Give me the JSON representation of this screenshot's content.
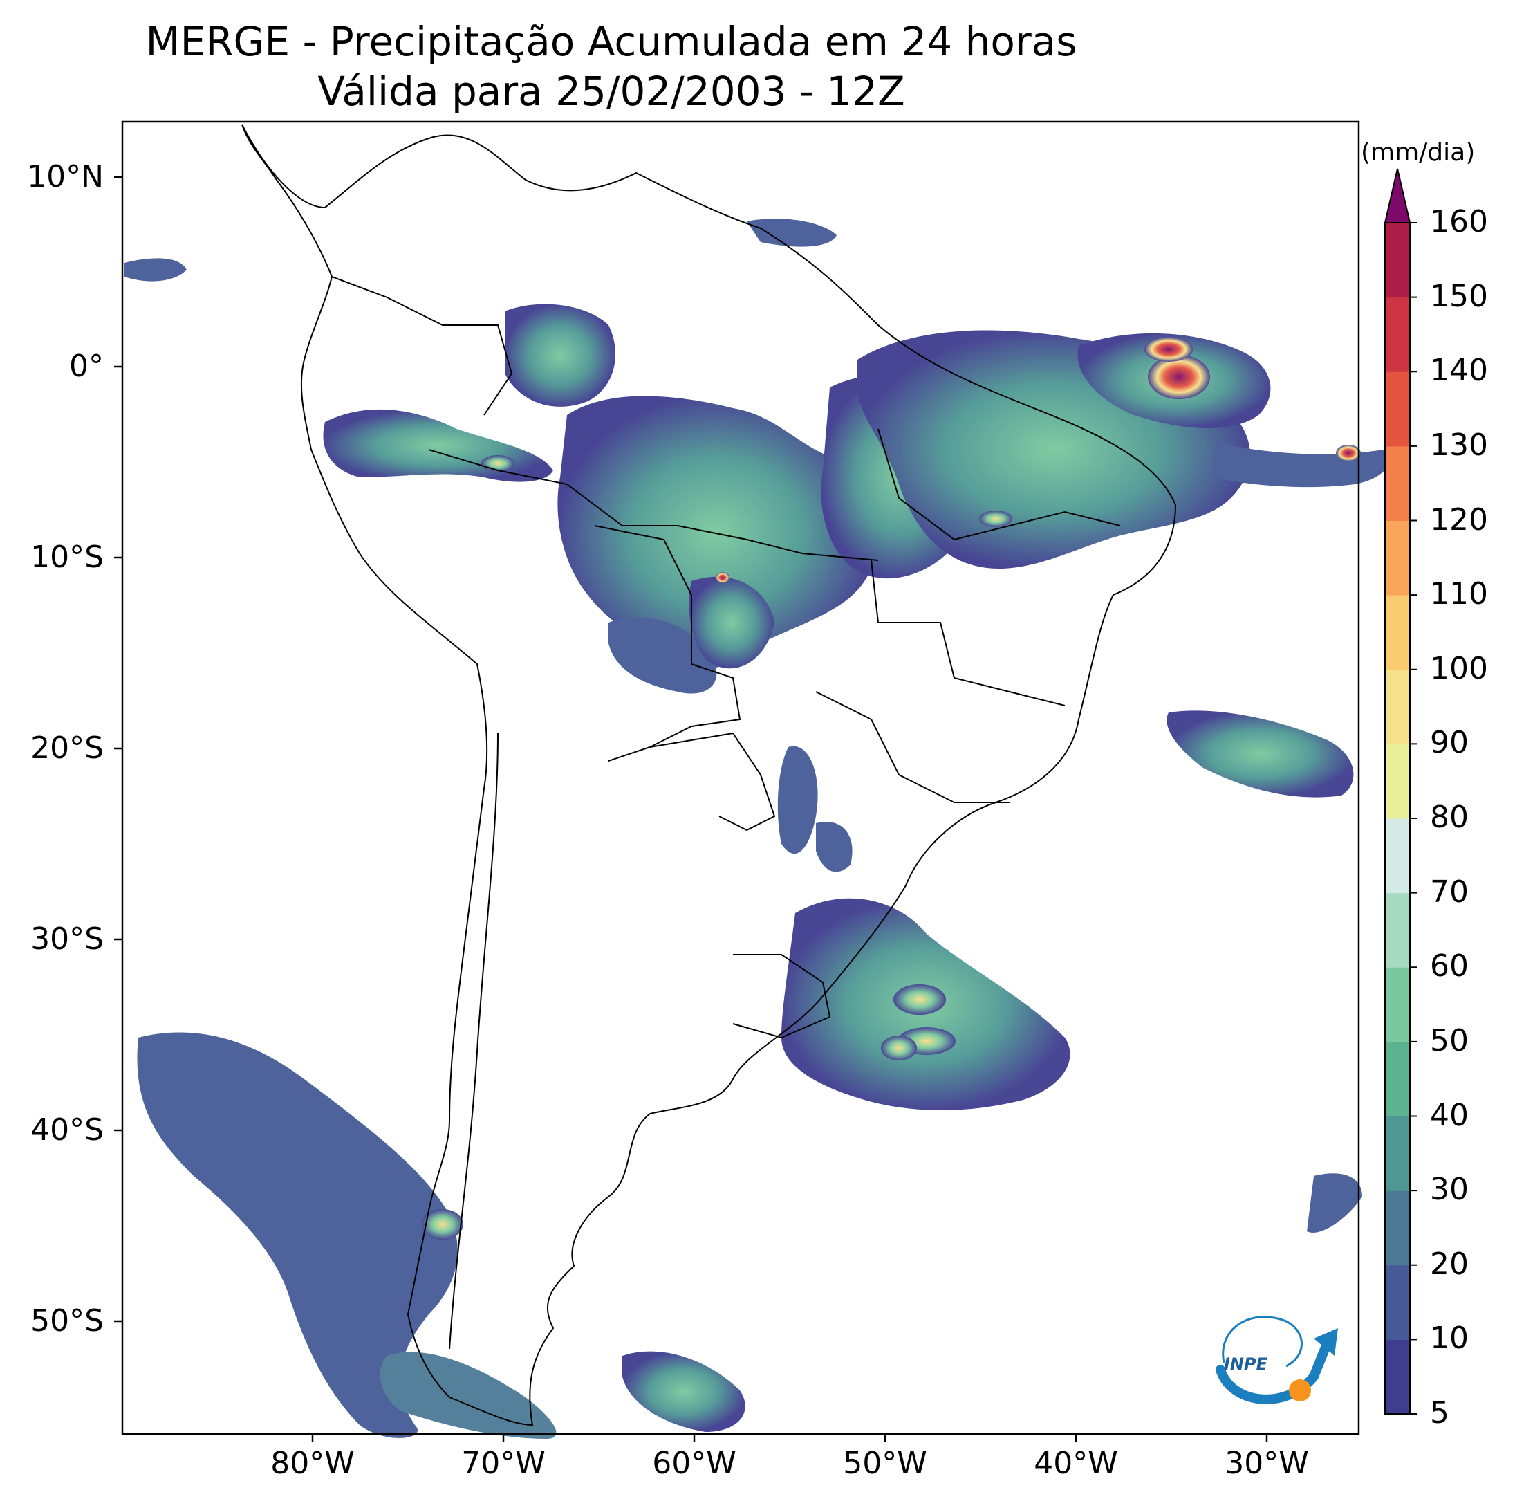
{
  "title_line1": "MERGE - Precipitação Acumulada em 24 horas",
  "title_line2": "Válida para 25/02/2003 - 12Z",
  "lat_labels": [
    "10°N",
    "0°",
    "10°S",
    "20°S",
    "30°S",
    "40°S",
    "50°S"
  ],
  "lon_labels": [
    "80°W",
    "70°W",
    "60°W",
    "50°W",
    "40°W",
    "30°W"
  ],
  "colorbar": {
    "unit": "(mm/dia)",
    "ticks": [
      "5",
      "10",
      "20",
      "30",
      "40",
      "50",
      "60",
      "70",
      "80",
      "90",
      "100",
      "110",
      "120",
      "130",
      "140",
      "150",
      "160"
    ],
    "extend": "max",
    "palette": [
      "#3f3d8f",
      "#455a96",
      "#4c7a96",
      "#4e9894",
      "#5cb38f",
      "#7ac99e",
      "#a6dbc1",
      "#d5ece6",
      "#e8f09a",
      "#f6e08a",
      "#fbcb70",
      "#f9a65a",
      "#f37f4a",
      "#e5543f",
      "#cf3442",
      "#ad1d48",
      "#7d0a6a"
    ]
  },
  "logo": {
    "text": "INPE",
    "primary_color": "#1b7fbf",
    "accent_color": "#f7941d"
  }
}
